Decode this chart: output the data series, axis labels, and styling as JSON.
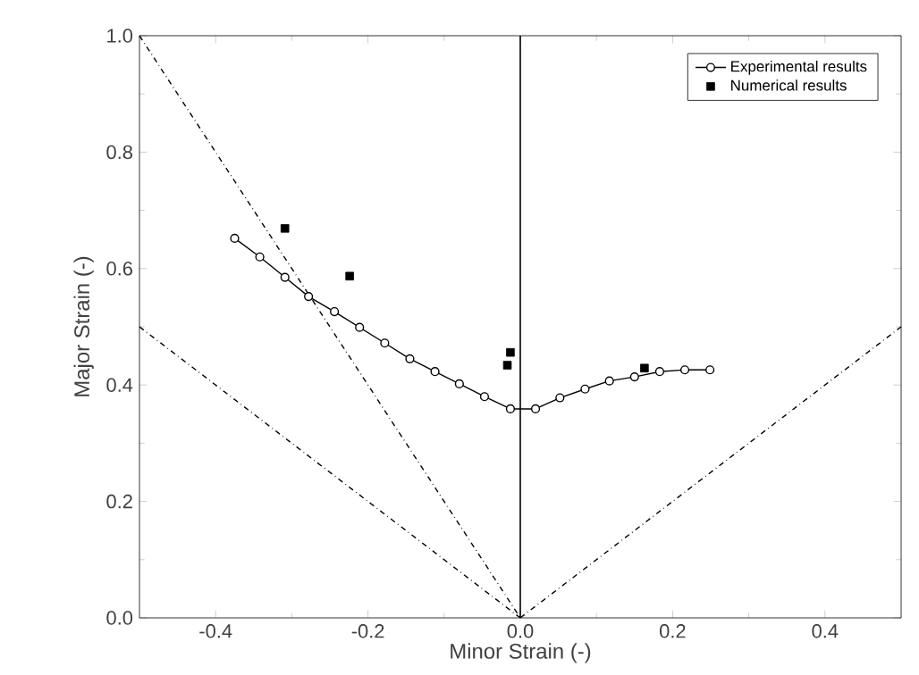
{
  "chart_data": {
    "type": "line",
    "xlabel": "Minor Strain (-)",
    "ylabel": "Major Strain (-)",
    "xlim": [
      -0.5,
      0.5
    ],
    "ylim": [
      0,
      1.0
    ],
    "xticks": [
      -0.4,
      -0.2,
      {
        "value": 0,
        "label": "0.0"
      },
      0.2,
      0.4
    ],
    "yticks": [
      {
        "value": 0,
        "label": "0.0"
      },
      0.2,
      0.4,
      0.6,
      0.8,
      {
        "value": 1.0,
        "label": "1.0"
      }
    ],
    "grid": false,
    "legend": "top right",
    "ref_lines": [
      {
        "axis": "x",
        "value": 0,
        "color": "#000000",
        "line_style": "solid"
      }
    ],
    "series": [
      {
        "name": "Experimental results",
        "color": "#000000",
        "marker": "circle",
        "line_style": "solid",
        "x": [
          -0.375,
          -0.342,
          -0.309,
          -0.278,
          -0.244,
          -0.211,
          -0.178,
          -0.145,
          -0.112,
          -0.08,
          -0.047,
          -0.013,
          0.02,
          0.052,
          0.085,
          0.117,
          0.15,
          0.183,
          0.216,
          0.249
        ],
        "values": [
          0.652,
          0.62,
          0.585,
          0.552,
          0.526,
          0.499,
          0.472,
          0.445,
          0.423,
          0.402,
          0.38,
          0.359,
          0.359,
          0.378,
          0.393,
          0.407,
          0.414,
          0.423,
          0.426,
          0.426
        ]
      },
      {
        "name": "Numerical results",
        "type": "scatter",
        "color": "#000000",
        "marker": "square",
        "x": [
          -0.309,
          -0.224,
          -0.017,
          -0.013,
          0.163
        ],
        "values": [
          0.669,
          0.587,
          0.434,
          0.456,
          0.429
        ]
      },
      {
        "color": "#000000",
        "marker": "none",
        "line_style": "dashdot",
        "x": [
          -0.5,
          0
        ],
        "values": [
          1.0,
          0
        ]
      },
      {
        "color": "#000000",
        "marker": "none",
        "line_style": "dashdot",
        "x": [
          -0.5,
          0
        ],
        "values": [
          0.5,
          0
        ]
      },
      {
        "color": "#000000",
        "marker": "none",
        "line_style": "dashdot",
        "x": [
          0,
          0.5
        ],
        "values": [
          0,
          0.5
        ]
      }
    ]
  }
}
